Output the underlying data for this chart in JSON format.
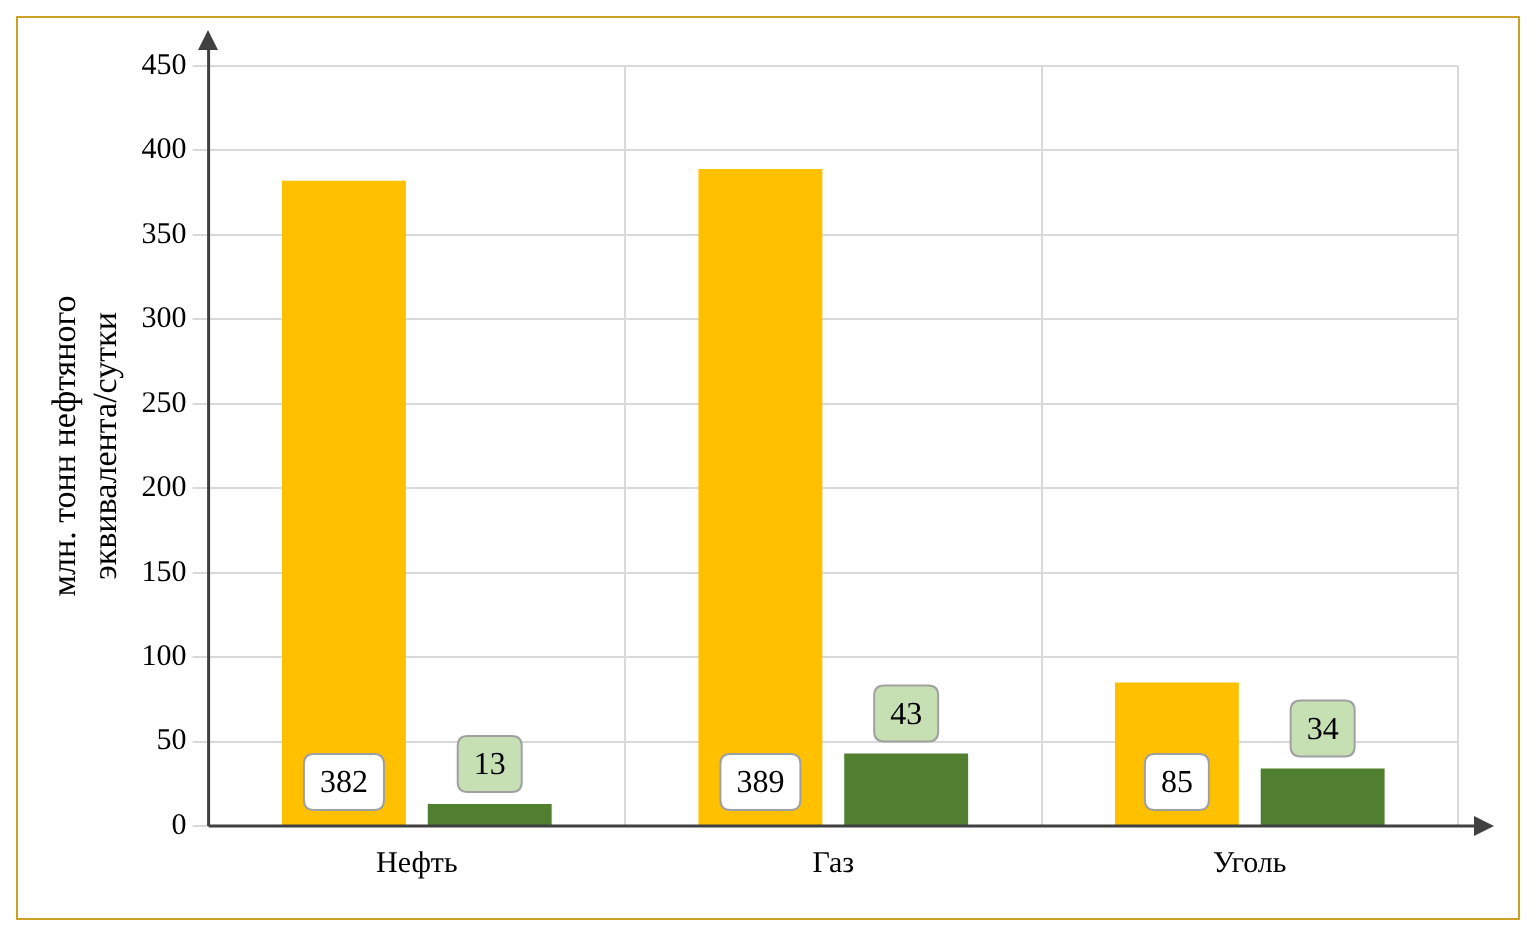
{
  "chart_data": {
    "type": "bar",
    "ylabel": "млн. тонн нефтяного эквивалента/сутки",
    "categories": [
      "Нефть",
      "Газ",
      "Уголь"
    ],
    "series": [
      {
        "color": "#ffc000",
        "values": [
          382,
          389,
          85
        ]
      },
      {
        "color": "#4f7f2f",
        "values": [
          13,
          43,
          34
        ]
      }
    ],
    "ylim": [
      0,
      450
    ],
    "yticks": [
      0,
      50,
      100,
      150,
      200,
      250,
      300,
      350,
      400,
      450
    ],
    "grid": true,
    "data_labels": true
  }
}
